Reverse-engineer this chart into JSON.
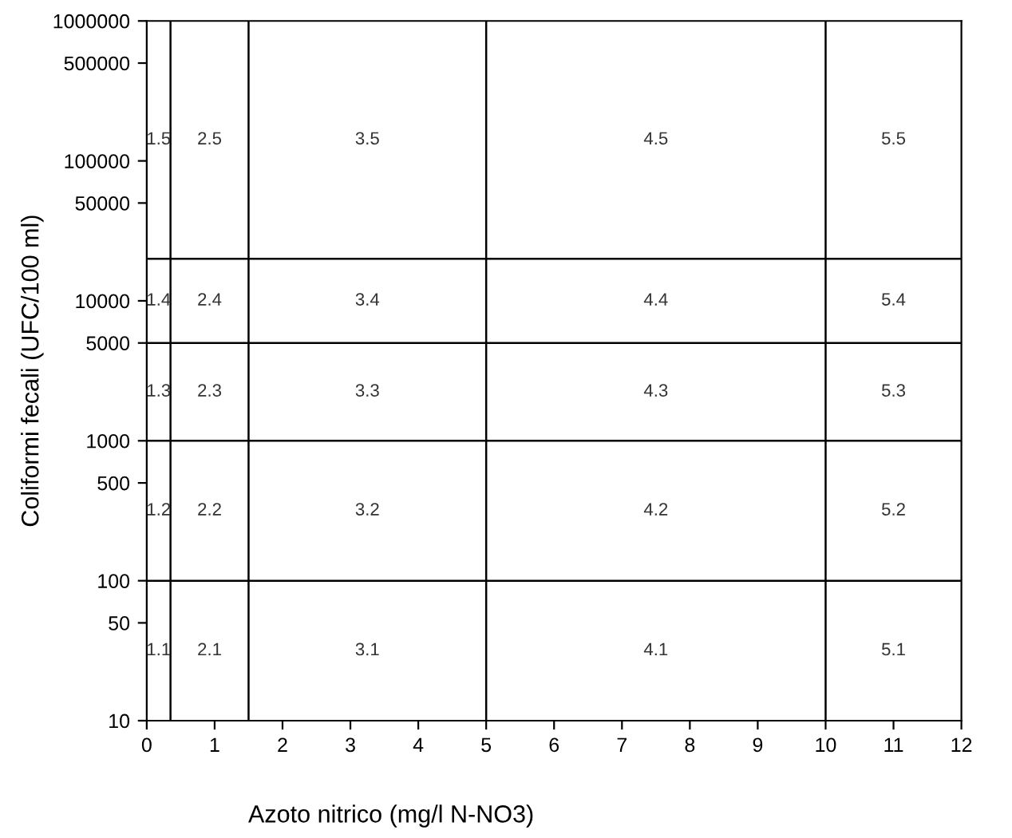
{
  "chart_data": {
    "type": "line",
    "xlabel": "Azoto nitrico (mg/l N-NO3)",
    "ylabel": "Coliformi fecali (UFC/100 ml)",
    "log": "y",
    "xlim": [
      0,
      12
    ],
    "ylim": [
      10,
      1000000
    ],
    "xticks": [
      0,
      1,
      2,
      3,
      4,
      5,
      6,
      7,
      8,
      9,
      10,
      11,
      12
    ],
    "yticks": [
      10,
      50,
      100,
      500,
      1000,
      5000,
      10000,
      50000,
      100000,
      500000,
      1000000
    ],
    "marker": "none",
    "series": [
      {
        "color": "#000000",
        "x": [
          0.35,
          0.35
        ],
        "values": [
          10,
          1000000
        ]
      },
      {
        "color": "#000000",
        "x": [
          1.5,
          1.5
        ],
        "values": [
          10,
          1000000
        ]
      },
      {
        "color": "#000000",
        "x": [
          5,
          5
        ],
        "values": [
          10,
          1000000
        ]
      },
      {
        "color": "#000000",
        "x": [
          10,
          10
        ],
        "values": [
          10,
          1000000
        ]
      },
      {
        "color": "#000000",
        "x": [
          0,
          12
        ],
        "values": [
          100,
          100
        ]
      },
      {
        "color": "#000000",
        "x": [
          0,
          12
        ],
        "values": [
          1000,
          1000
        ]
      },
      {
        "color": "#000000",
        "x": [
          0,
          12
        ],
        "values": [
          5000,
          5000
        ]
      },
      {
        "color": "#000000",
        "x": [
          0,
          12
        ],
        "values": [
          20000,
          20000
        ]
      }
    ],
    "annotations": [
      "1.5",
      "2.5",
      "3.5",
      "4.5",
      "5.5",
      "1.4",
      "2.4",
      "3.4",
      "4.4",
      "5.4",
      "1.3",
      "2.3",
      "3.3",
      "4.3",
      "5.3",
      "1.2",
      "2.2",
      "3.2",
      "4.2",
      "5.2",
      "1.1",
      "2.1",
      "3.1",
      "4.1",
      "5.1"
    ]
  }
}
